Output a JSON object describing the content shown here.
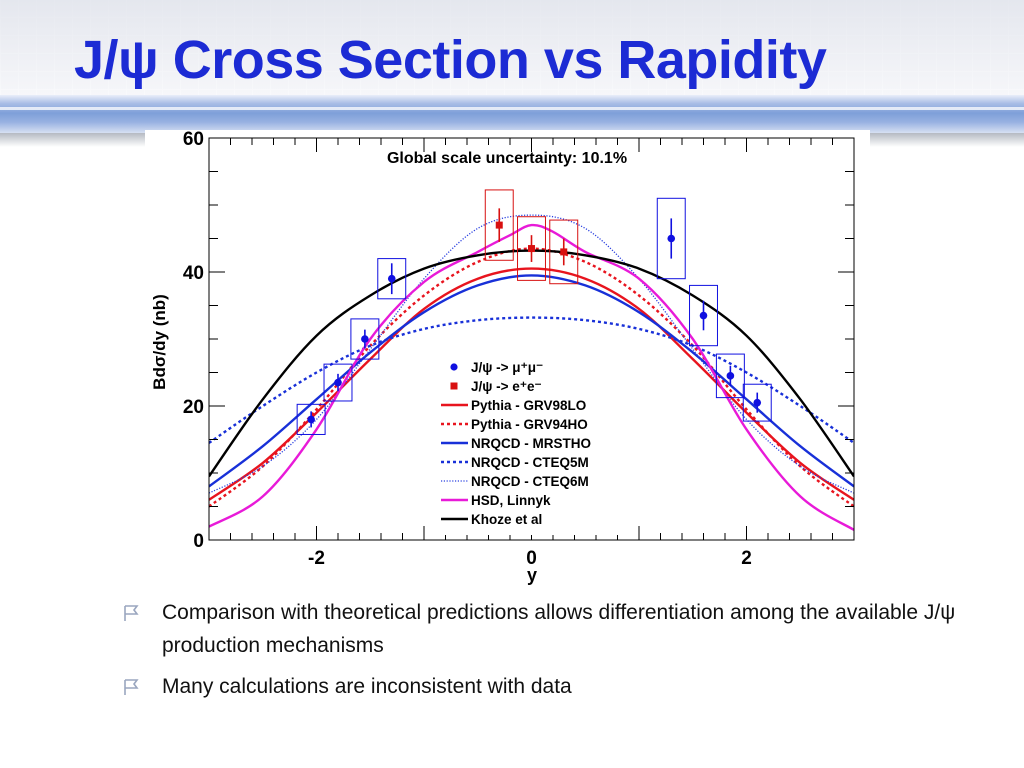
{
  "slide": {
    "title": "J/ψ Cross Section vs Rapidity",
    "bullets": [
      "Comparison with theoretical predictions allows differentiation among the available J/ψ production mechanisms",
      "Many calculations are inconsistent with data"
    ],
    "colors": {
      "title": "#1c2bd4",
      "band": "#7e9fd9",
      "bullet_icon": "#9aa6bf"
    },
    "icons": {
      "bullet": "hollow-flag-icon"
    }
  },
  "chart_data": {
    "type": "scatter",
    "title": "",
    "annotation": "Global scale uncertainty: 10.1%",
    "xlabel": "y",
    "ylabel": "Bdσ/dy (nb)",
    "xlim": [
      -3,
      3
    ],
    "ylim": [
      0,
      60
    ],
    "xticks": [
      -2,
      0,
      2
    ],
    "xtick_labels": [
      "-2",
      "0",
      "2"
    ],
    "yticks": [
      0,
      20,
      40,
      60
    ],
    "ytick_labels": [
      "0",
      "20",
      "40",
      "60"
    ],
    "grid": false,
    "legend_position": "lower-center",
    "data_series": [
      {
        "name": "J/ψ -> μ⁺μ⁻",
        "marker": "circle",
        "color": "#1010e0",
        "points": [
          {
            "x": -2.05,
            "y": 18.0,
            "err": 1.2,
            "sys_w": 0.26,
            "sys_h": 4.5
          },
          {
            "x": -1.8,
            "y": 23.5,
            "err": 1.3,
            "sys_w": 0.26,
            "sys_h": 5.5
          },
          {
            "x": -1.55,
            "y": 30.0,
            "err": 1.4,
            "sys_w": 0.26,
            "sys_h": 6.0
          },
          {
            "x": -1.3,
            "y": 39.0,
            "err": 2.3,
            "sys_w": 0.26,
            "sys_h": 6.0
          },
          {
            "x": 1.3,
            "y": 45.0,
            "err": 3.0,
            "sys_w": 0.26,
            "sys_h": 12.0
          },
          {
            "x": 1.6,
            "y": 33.5,
            "err": 2.2,
            "sys_w": 0.26,
            "sys_h": 9.0
          },
          {
            "x": 1.85,
            "y": 24.5,
            "err": 1.5,
            "sys_w": 0.26,
            "sys_h": 6.5
          },
          {
            "x": 2.1,
            "y": 20.5,
            "err": 1.5,
            "sys_w": 0.26,
            "sys_h": 5.5
          }
        ]
      },
      {
        "name": "J/ψ -> e⁺e⁻",
        "marker": "square",
        "color": "#d81010",
        "points": [
          {
            "x": -0.3,
            "y": 47.0,
            "err": 2.5,
            "sys_w": 0.26,
            "sys_h": 10.5
          },
          {
            "x": 0.0,
            "y": 43.5,
            "err": 2.0,
            "sys_w": 0.26,
            "sys_h": 9.5
          },
          {
            "x": 0.3,
            "y": 43.0,
            "err": 2.0,
            "sys_w": 0.26,
            "sys_h": 9.5
          }
        ]
      }
    ],
    "theory_series": [
      {
        "name": "Pythia - GRV98LO",
        "color": "#e8141e",
        "dash": "solid",
        "width": 2.4,
        "x": [
          -3,
          -2.5,
          -2,
          -1.5,
          -1,
          -0.5,
          0,
          0.5,
          1,
          1.5,
          2,
          2.5,
          3
        ],
        "y": [
          6,
          11.5,
          19,
          27,
          34.5,
          39,
          40.5,
          39,
          34.5,
          27,
          19,
          11.5,
          6
        ]
      },
      {
        "name": "Pythia - GRV94HO",
        "color": "#e8141e",
        "dash": "dotted",
        "width": 2.4,
        "x": [
          -3,
          -2.5,
          -2,
          -1.5,
          -1,
          -0.5,
          0,
          0.5,
          1,
          1.5,
          2,
          2.5,
          3
        ],
        "y": [
          5,
          11,
          19.5,
          29,
          36.5,
          41.5,
          43.5,
          41.5,
          36.5,
          29,
          19.5,
          11,
          5
        ]
      },
      {
        "name": "NRQCD - MRSTHO",
        "color": "#1830d8",
        "dash": "solid",
        "width": 2.4,
        "x": [
          -3,
          -2.5,
          -2,
          -1.5,
          -1,
          -0.5,
          0,
          0.5,
          1,
          1.5,
          2,
          2.5,
          3
        ],
        "y": [
          8,
          14,
          21,
          28,
          34,
          38,
          39.5,
          38,
          34,
          28,
          21,
          14,
          8
        ]
      },
      {
        "name": "NRQCD - CTEQ5M",
        "color": "#1830d8",
        "dash": "dotted",
        "width": 2.4,
        "x": [
          -3,
          -2.5,
          -2,
          -1.5,
          -1,
          -0.5,
          0,
          0.5,
          1,
          1.5,
          2,
          2.5,
          3
        ],
        "y": [
          14.5,
          20,
          25,
          29,
          31.5,
          32.8,
          33.2,
          32.8,
          31.5,
          29,
          25,
          20,
          14.5
        ]
      },
      {
        "name": "NRQCD - CTEQ6M",
        "color": "#2a40e0",
        "dash": "dense",
        "width": 1.3,
        "x": [
          -3,
          -2.5,
          -2,
          -1.5,
          -1,
          -0.5,
          0,
          0.5,
          1,
          1.5,
          2,
          2.5,
          3
        ],
        "y": [
          7,
          11,
          18,
          28.5,
          39,
          46.5,
          48.5,
          46.5,
          39,
          28.5,
          18,
          11,
          7
        ]
      },
      {
        "name": "HSD, Linnyk",
        "color": "#e81ad8",
        "dash": "solid",
        "width": 2.4,
        "x": [
          -3,
          -2.5,
          -2,
          -1.5,
          -1,
          -0.5,
          -0.2,
          0,
          0.2,
          0.5,
          1,
          1.5,
          2,
          2.5,
          3
        ],
        "y": [
          2,
          6.5,
          16.5,
          30,
          38.5,
          43,
          45.5,
          47,
          46,
          43,
          39,
          30,
          16.5,
          6.5,
          1.5
        ]
      },
      {
        "name": "Khoze et al",
        "color": "#000000",
        "dash": "solid",
        "width": 2.4,
        "x": [
          -3,
          -2.5,
          -2,
          -1.5,
          -1,
          -0.5,
          0,
          0.5,
          1,
          1.5,
          2,
          2.5,
          3
        ],
        "y": [
          9.5,
          21,
          30.5,
          36.5,
          40.5,
          42.5,
          43.2,
          42.5,
          40.5,
          36.5,
          30.5,
          21,
          9.5
        ]
      }
    ]
  }
}
